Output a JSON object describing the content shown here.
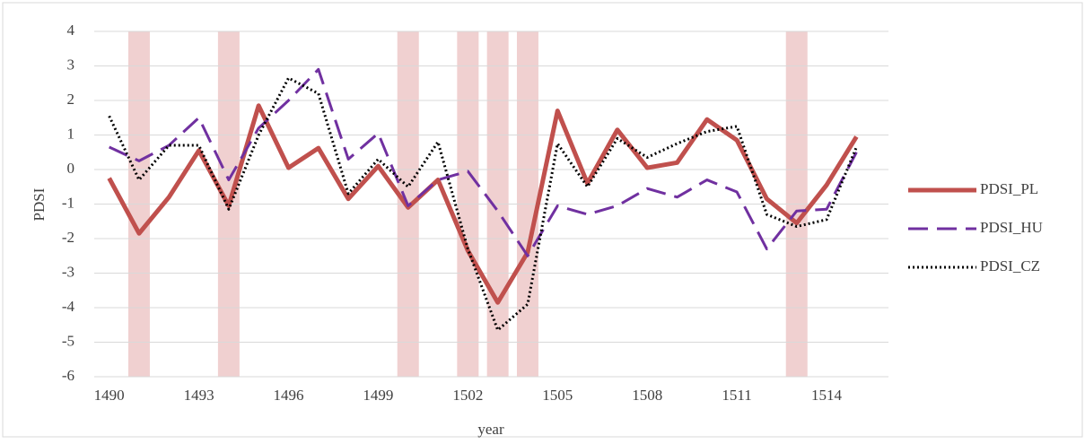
{
  "chart_data": {
    "type": "line",
    "x_label": "year",
    "y_label": "PDSI",
    "x": [
      1490,
      1491,
      1492,
      1493,
      1494,
      1495,
      1496,
      1497,
      1498,
      1499,
      1500,
      1501,
      1502,
      1503,
      1504,
      1505,
      1506,
      1507,
      1508,
      1509,
      1510,
      1511,
      1512,
      1513,
      1514,
      1515
    ],
    "xlim": [
      1489.5,
      1515.5
    ],
    "xticks": [
      1490,
      1493,
      1496,
      1499,
      1502,
      1505,
      1508,
      1511,
      1514
    ],
    "ylim": [
      -6,
      4
    ],
    "yticks": [
      -6,
      -5,
      -4,
      -3,
      -2,
      -1,
      0,
      1,
      2,
      3,
      4
    ],
    "grid": true,
    "legend": "right",
    "highlight_years": [
      1491,
      1494,
      1500,
      1502,
      1503,
      1504,
      1513
    ],
    "highlight_color": "#f0d0d0",
    "series": [
      {
        "name": "PDSI_PL",
        "color": "#c0504d",
        "style": "solid",
        "values": [
          -0.25,
          -1.85,
          -0.8,
          0.55,
          -1.05,
          1.85,
          0.05,
          0.62,
          -0.85,
          0.1,
          -1.1,
          -0.3,
          -2.35,
          -3.85,
          -2.4,
          1.7,
          -0.4,
          1.15,
          0.05,
          0.2,
          1.45,
          0.85,
          -0.85,
          -1.55,
          -0.45,
          0.95
        ]
      },
      {
        "name": "PDSI_HU",
        "color": "#7030a0",
        "style": "dashed",
        "values": [
          0.65,
          0.25,
          0.7,
          1.5,
          -0.3,
          1.2,
          2.0,
          2.9,
          0.3,
          1.05,
          -1.05,
          -0.3,
          -0.05,
          -1.2,
          -2.5,
          -1.05,
          -1.3,
          -1.05,
          -0.55,
          -0.8,
          -0.3,
          -0.65,
          -2.3,
          -1.2,
          -1.15,
          0.5
        ]
      },
      {
        "name": "PDSI_CZ",
        "color": "#000000",
        "style": "dotted",
        "values": [
          1.55,
          -0.3,
          0.7,
          0.7,
          -1.15,
          1.0,
          2.65,
          2.2,
          -0.7,
          0.3,
          -0.5,
          0.8,
          -2.3,
          -4.65,
          -3.9,
          0.75,
          -0.5,
          0.9,
          0.35,
          0.75,
          1.1,
          1.25,
          -1.3,
          -1.65,
          -1.45,
          0.65
        ]
      }
    ]
  }
}
